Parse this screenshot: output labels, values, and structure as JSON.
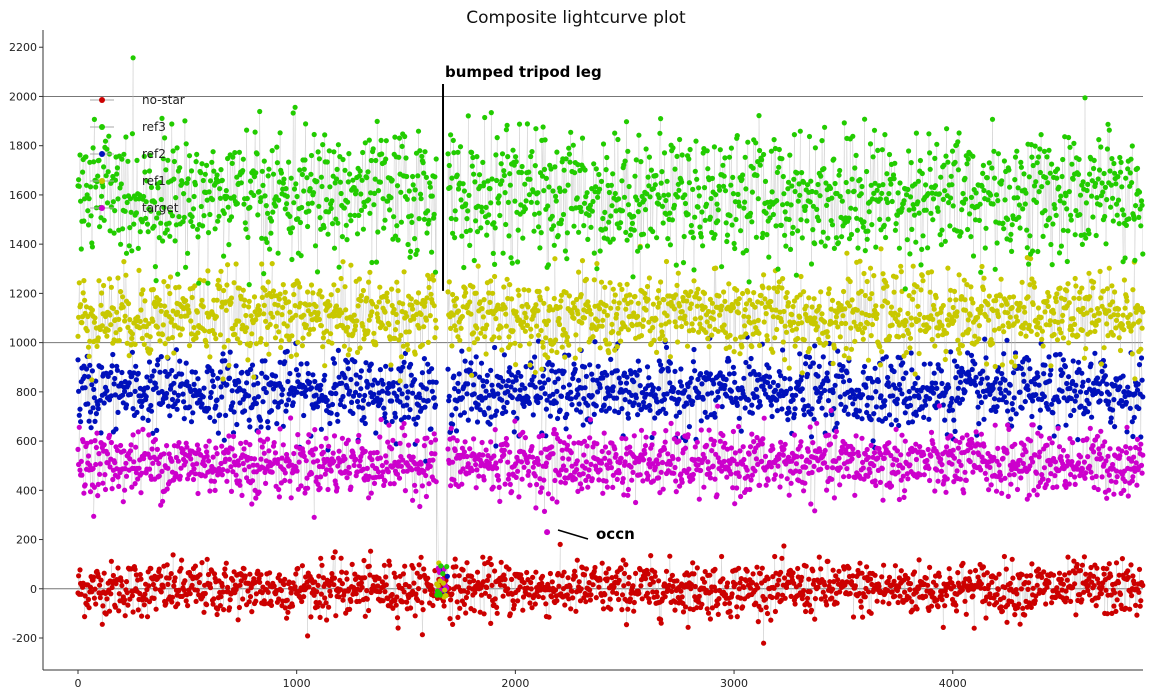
{
  "chart_data": {
    "type": "scatter",
    "title": "Composite lightcurve plot",
    "xlabel": "",
    "ylabel": "",
    "xlim": [
      -160,
      4870
    ],
    "ylim": [
      -330,
      2270
    ],
    "xticks": [
      0,
      1000,
      2000,
      3000,
      4000
    ],
    "yticks": [
      -200,
      0,
      200,
      400,
      600,
      800,
      1000,
      1200,
      1400,
      1600,
      1800,
      2000,
      2200
    ],
    "grid_y_lines": [
      0,
      1000,
      2000
    ],
    "legend_placement": "top-left",
    "n_frames": 4870,
    "event_frame_range": [
      1640,
      1690
    ],
    "series": [
      {
        "name": "no-star",
        "color": "#cc0000",
        "mean": 0,
        "spread": 55
      },
      {
        "name": "ref3",
        "color": "#22cc00",
        "mean": 1600,
        "spread": 130
      },
      {
        "name": "ref2",
        "color": "#0011bb",
        "mean": 800,
        "spread": 75
      },
      {
        "name": "ref1",
        "color": "#c8c800",
        "mean": 1110,
        "spread": 85
      },
      {
        "name": "target",
        "color": "#cc00cc",
        "mean": 510,
        "spread": 65
      }
    ],
    "annotations": [
      {
        "text": "bumped tripod leg",
        "x": 1660,
        "y": 1210
      },
      {
        "text": "occn",
        "x": 2150,
        "y": 245
      }
    ]
  }
}
